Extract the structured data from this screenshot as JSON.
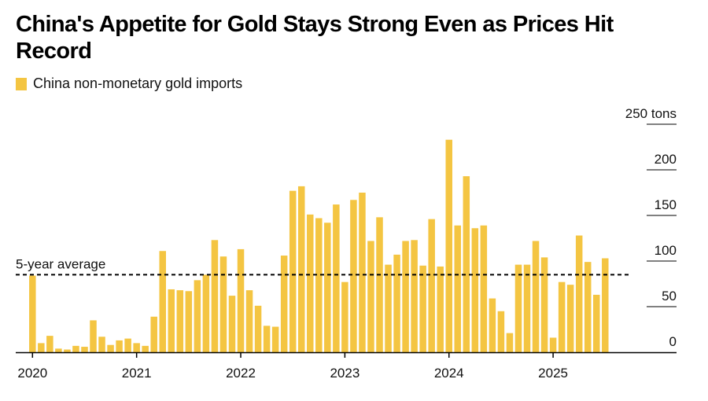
{
  "colors": {
    "bar": "#F4C542",
    "axis": "#000000",
    "grid": "#000000",
    "avg": "#000000"
  },
  "chart_data": {
    "type": "bar",
    "title": "China's Appetite for Gold Stays Strong Even as Prices Hit Record",
    "legend": [
      "China non-monetary gold imports"
    ],
    "ylabel": "tons",
    "ylim": [
      0,
      250
    ],
    "yticks": [
      {
        "value": 250,
        "label": "250 tons"
      },
      {
        "value": 200,
        "label": "200"
      },
      {
        "value": 150,
        "label": "150"
      },
      {
        "value": 100,
        "label": "100"
      },
      {
        "value": 50,
        "label": "50"
      },
      {
        "value": 0,
        "label": "0"
      }
    ],
    "xticks": [
      {
        "index": 0,
        "label": "2020"
      },
      {
        "index": 12,
        "label": "2021"
      },
      {
        "index": 24,
        "label": "2022"
      },
      {
        "index": 36,
        "label": "2023"
      },
      {
        "index": 48,
        "label": "2024"
      },
      {
        "index": 60,
        "label": "2025"
      }
    ],
    "reference_line": {
      "label": "5-year average",
      "value": 85
    },
    "series": [
      {
        "name": "China non-monetary gold imports",
        "categories": [
          "2020-01",
          "2020-02",
          "2020-03",
          "2020-04",
          "2020-05",
          "2020-06",
          "2020-07",
          "2020-08",
          "2020-09",
          "2020-10",
          "2020-11",
          "2020-12",
          "2021-01",
          "2021-02",
          "2021-03",
          "2021-04",
          "2021-05",
          "2021-06",
          "2021-07",
          "2021-08",
          "2021-09",
          "2021-10",
          "2021-11",
          "2021-12",
          "2022-01",
          "2022-02",
          "2022-03",
          "2022-04",
          "2022-05",
          "2022-06",
          "2022-07",
          "2022-08",
          "2022-09",
          "2022-10",
          "2022-11",
          "2022-12",
          "2023-01",
          "2023-02",
          "2023-03",
          "2023-04",
          "2023-05",
          "2023-06",
          "2023-07",
          "2023-08",
          "2023-09",
          "2023-10",
          "2023-11",
          "2023-12",
          "2024-01",
          "2024-02",
          "2024-03",
          "2024-04",
          "2024-05",
          "2024-06",
          "2024-07",
          "2024-08",
          "2024-09",
          "2024-10",
          "2024-11",
          "2024-12",
          "2025-01",
          "2025-02",
          "2025-03",
          "2025-04",
          "2025-05",
          "2025-06",
          "2025-07"
        ],
        "values": [
          84,
          10,
          18,
          4,
          3,
          7,
          6,
          35,
          17,
          8,
          13,
          15,
          10,
          7,
          39,
          111,
          69,
          68,
          67,
          79,
          85,
          123,
          105,
          62,
          113,
          68,
          51,
          29,
          28,
          106,
          177,
          182,
          151,
          147,
          142,
          162,
          77,
          167,
          175,
          122,
          148,
          96,
          107,
          122,
          123,
          95,
          146,
          94,
          233,
          139,
          193,
          136,
          139,
          59,
          45,
          21,
          96,
          96,
          122,
          104,
          16,
          77,
          74,
          128,
          99,
          63,
          103
        ]
      }
    ]
  }
}
